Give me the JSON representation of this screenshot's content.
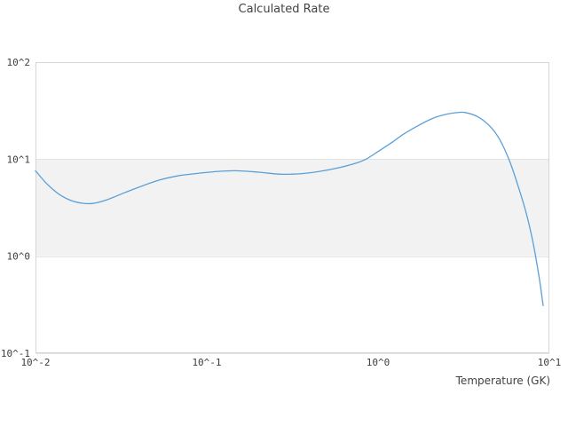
{
  "chart_data": {
    "type": "line",
    "title": "Calculated Rate",
    "xlabel": "Temperature (GK)",
    "ylabel": "",
    "x_scale": "log",
    "y_scale": "log",
    "x_range": [
      0.01,
      10
    ],
    "y_range": [
      0.1,
      100
    ],
    "grid": "horizontal-decades-only",
    "legend": "none",
    "x_ticks": [
      {
        "label": "10^-2",
        "value": 0.01
      },
      {
        "label": "10^-1",
        "value": 0.1
      },
      {
        "label": "10^0",
        "value": 1
      },
      {
        "label": "10^1",
        "value": 10
      }
    ],
    "y_ticks": [
      {
        "label": "10^-1",
        "value": 0.1
      },
      {
        "label": "10^0",
        "value": 1
      },
      {
        "label": "10^1",
        "value": 10
      },
      {
        "label": "10^2",
        "value": 100
      }
    ],
    "highlight_band": {
      "axis": "y",
      "from": 1,
      "to": 10,
      "color": "#f2f2f2"
    },
    "series": [
      {
        "name": "calculated rate",
        "color": "#5b9fd8",
        "points": [
          [
            0.01,
            7.6
          ],
          [
            0.0113,
            5.9
          ],
          [
            0.0127,
            4.85
          ],
          [
            0.0143,
            4.15
          ],
          [
            0.0161,
            3.75
          ],
          [
            0.0186,
            3.52
          ],
          [
            0.0217,
            3.5
          ],
          [
            0.026,
            3.8
          ],
          [
            0.033,
            4.5
          ],
          [
            0.042,
            5.3
          ],
          [
            0.053,
            6.1
          ],
          [
            0.067,
            6.7
          ],
          [
            0.086,
            7.1
          ],
          [
            0.109,
            7.4
          ],
          [
            0.146,
            7.6
          ],
          [
            0.2,
            7.35
          ],
          [
            0.27,
            7.0
          ],
          [
            0.36,
            7.1
          ],
          [
            0.46,
            7.5
          ],
          [
            0.58,
            8.1
          ],
          [
            0.73,
            9.0
          ],
          [
            0.85,
            10.0
          ],
          [
            1.0,
            12.0
          ],
          [
            1.2,
            14.8
          ],
          [
            1.4,
            18.0
          ],
          [
            1.7,
            22.0
          ],
          [
            2.1,
            26.5
          ],
          [
            2.5,
            29.0
          ],
          [
            2.9,
            30.2
          ],
          [
            3.2,
            30.3
          ],
          [
            3.8,
            27.5
          ],
          [
            4.5,
            21.8
          ],
          [
            5.1,
            16.2
          ],
          [
            5.8,
            10.0
          ],
          [
            6.5,
            5.6
          ],
          [
            7.3,
            2.85
          ],
          [
            8.0,
            1.43
          ],
          [
            8.7,
            0.62
          ],
          [
            9.2,
            0.31
          ]
        ]
      }
    ]
  },
  "colors": {
    "background": "#ffffff",
    "band": "#f2f2f2",
    "gridline": "#e3e3e3",
    "plot_border": "#d6d6d6",
    "text": "#3d3d3d",
    "line": "#5b9fd8"
  }
}
